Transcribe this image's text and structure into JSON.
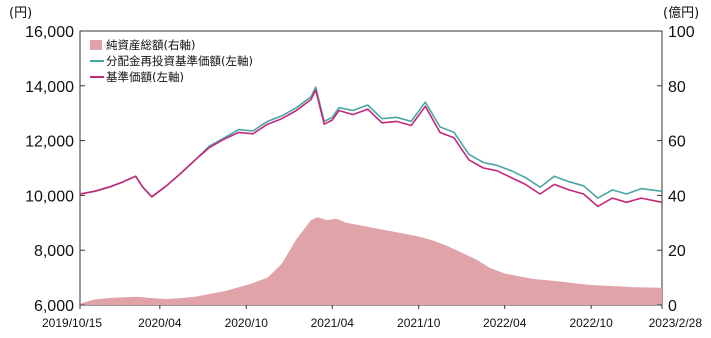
{
  "chart_data": {
    "type": "line",
    "left_unit": "(円)",
    "right_unit": "(億円)",
    "left_axis": {
      "min": 6000,
      "max": 16000,
      "ticks": [
        6000,
        8000,
        10000,
        12000,
        14000,
        16000
      ],
      "tick_labels": [
        "6,000",
        "8,000",
        "10,000",
        "12,000",
        "14,000",
        "16,000"
      ]
    },
    "right_axis": {
      "min": 0,
      "max": 100,
      "ticks": [
        0,
        20,
        40,
        60,
        80,
        100
      ],
      "tick_labels": [
        "0",
        "20",
        "40",
        "60",
        "80",
        "100"
      ]
    },
    "x_tick_labels": [
      "2019/10/15",
      "2020/04",
      "2020/10",
      "2021/04",
      "2021/10",
      "2022/04",
      "2022/10",
      "2023/2/28"
    ],
    "x_tick_dates": [
      "2019-10-15",
      "2020-04-01",
      "2020-10-01",
      "2021-04-01",
      "2021-10-01",
      "2022-04-01",
      "2022-10-01",
      "2023-02-28"
    ],
    "x_domain": [
      "2019-10-15",
      "2023-02-28"
    ],
    "legend_position": "top-left",
    "grid": false,
    "colors": {
      "net_assets": "#dfa3a8",
      "nav_reinvested": "#4aa6a3",
      "nav": "#c4287a"
    },
    "series": [
      {
        "name": "純資産総額(右軸)",
        "kind": "area",
        "axis": "right",
        "x": [
          "2019-10-15",
          "2019-11-15",
          "2019-12-15",
          "2020-01-15",
          "2020-02-15",
          "2020-03-15",
          "2020-04-15",
          "2020-05-15",
          "2020-06-15",
          "2020-07-15",
          "2020-08-15",
          "2020-09-15",
          "2020-10-15",
          "2020-11-15",
          "2020-12-15",
          "2021-01-15",
          "2021-02-15",
          "2021-03-01",
          "2021-03-20",
          "2021-04-10",
          "2021-05-01",
          "2021-06-01",
          "2021-07-01",
          "2021-08-01",
          "2021-09-01",
          "2021-10-01",
          "2021-11-01",
          "2021-12-01",
          "2022-01-01",
          "2022-02-01",
          "2022-03-01",
          "2022-04-01",
          "2022-05-01",
          "2022-06-01",
          "2022-07-01",
          "2022-08-01",
          "2022-09-01",
          "2022-10-01",
          "2022-11-01",
          "2022-12-01",
          "2023-01-01",
          "2023-02-28"
        ],
        "values": [
          0.5,
          2,
          2.5,
          2.8,
          3,
          2.5,
          2.2,
          2.5,
          3,
          4,
          5,
          6.5,
          8,
          10,
          15,
          24,
          31,
          32,
          31,
          31.5,
          30,
          29,
          28,
          27,
          26,
          25,
          23.5,
          21.5,
          19,
          16.5,
          13.5,
          11.5,
          10.5,
          9.5,
          9,
          8.5,
          7.8,
          7.3,
          7,
          6.8,
          6.5,
          6.3
        ]
      },
      {
        "name": "分配金再投資基準価額(左軸)",
        "kind": "line",
        "axis": "left",
        "x": [
          "2019-10-15",
          "2019-11-15",
          "2019-12-15",
          "2020-01-15",
          "2020-02-10",
          "2020-02-25",
          "2020-03-15",
          "2020-04-15",
          "2020-05-15",
          "2020-06-15",
          "2020-07-15",
          "2020-08-15",
          "2020-09-15",
          "2020-10-15",
          "2020-11-15",
          "2020-12-15",
          "2021-01-15",
          "2021-02-15",
          "2021-02-25",
          "2021-03-15",
          "2021-04-01",
          "2021-04-15",
          "2021-05-15",
          "2021-06-15",
          "2021-07-15",
          "2021-08-15",
          "2021-09-15",
          "2021-10-15",
          "2021-11-15",
          "2021-12-15",
          "2022-01-15",
          "2022-02-15",
          "2022-03-15",
          "2022-04-15",
          "2022-05-15",
          "2022-06-15",
          "2022-07-15",
          "2022-08-15",
          "2022-09-15",
          "2022-10-15",
          "2022-11-15",
          "2022-12-15",
          "2023-01-15",
          "2023-02-28"
        ],
        "values": [
          10050,
          10150,
          10300,
          10500,
          10700,
          10300,
          9950,
          10350,
          10800,
          11300,
          11800,
          12100,
          12400,
          12350,
          12700,
          12900,
          13200,
          13600,
          13950,
          12700,
          12850,
          13200,
          13100,
          13300,
          12800,
          12850,
          12700,
          13400,
          12500,
          12300,
          11500,
          11200,
          11100,
          10900,
          10650,
          10300,
          10700,
          10500,
          10350,
          9900,
          10200,
          10050,
          10250,
          10150
        ]
      },
      {
        "name": "基準価額(左軸)",
        "kind": "line",
        "axis": "left",
        "x": [
          "2019-10-15",
          "2019-11-15",
          "2019-12-15",
          "2020-01-15",
          "2020-02-10",
          "2020-02-25",
          "2020-03-15",
          "2020-04-15",
          "2020-05-15",
          "2020-06-15",
          "2020-07-15",
          "2020-08-15",
          "2020-09-15",
          "2020-10-15",
          "2020-11-15",
          "2020-12-15",
          "2021-01-15",
          "2021-02-15",
          "2021-02-25",
          "2021-03-15",
          "2021-04-01",
          "2021-04-15",
          "2021-05-15",
          "2021-06-15",
          "2021-07-15",
          "2021-08-15",
          "2021-09-15",
          "2021-10-15",
          "2021-11-15",
          "2021-12-15",
          "2022-01-15",
          "2022-02-15",
          "2022-03-15",
          "2022-04-15",
          "2022-05-15",
          "2022-06-15",
          "2022-07-15",
          "2022-08-15",
          "2022-09-15",
          "2022-10-15",
          "2022-11-15",
          "2022-12-15",
          "2023-01-15",
          "2023-02-28"
        ],
        "values": [
          10050,
          10150,
          10300,
          10500,
          10700,
          10300,
          9950,
          10350,
          10800,
          11300,
          11750,
          12050,
          12300,
          12250,
          12600,
          12800,
          13100,
          13500,
          13850,
          12600,
          12750,
          13100,
          12950,
          13150,
          12650,
          12700,
          12550,
          13250,
          12300,
          12100,
          11300,
          11000,
          10900,
          10650,
          10400,
          10050,
          10400,
          10200,
          10050,
          9600,
          9900,
          9750,
          9900,
          9750
        ]
      }
    ]
  }
}
